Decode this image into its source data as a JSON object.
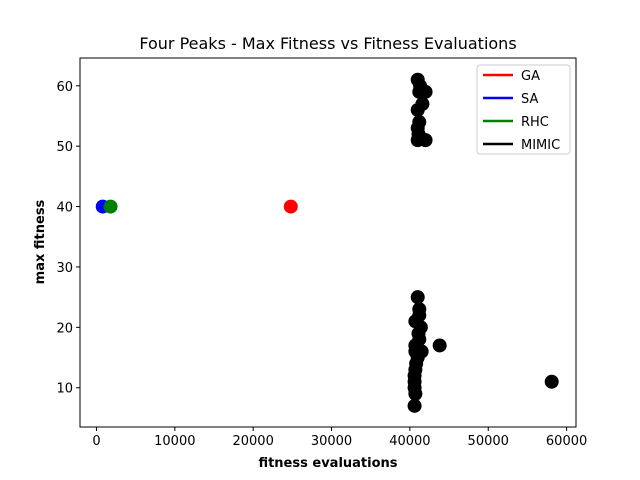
{
  "chart_data": {
    "type": "scatter",
    "title": "Four Peaks - Max Fitness vs Fitness Evaluations",
    "xlabel": "fitness evaluations",
    "ylabel": "max fitness",
    "xlim": [
      -2100,
      61200
    ],
    "ylim": [
      3.5,
      64.6
    ],
    "xticks": [
      0,
      10000,
      20000,
      30000,
      40000,
      50000,
      60000
    ],
    "yticks": [
      10,
      20,
      30,
      40,
      50,
      60
    ],
    "grid": false,
    "legend_position": "top-right",
    "series": [
      {
        "name": "GA",
        "color": "#ff0000",
        "points": [
          [
            24800,
            40
          ]
        ]
      },
      {
        "name": "SA",
        "color": "#0000ff",
        "points": [
          [
            800,
            40
          ]
        ]
      },
      {
        "name": "RHC",
        "color": "#008000",
        "points": [
          [
            1800,
            40
          ]
        ]
      },
      {
        "name": "MIMIC",
        "color": "#000000",
        "points": [
          [
            41000,
            61
          ],
          [
            41300,
            60
          ],
          [
            41600,
            59
          ],
          [
            41200,
            59
          ],
          [
            42000,
            59
          ],
          [
            41600,
            57
          ],
          [
            41000,
            56
          ],
          [
            41200,
            54
          ],
          [
            41000,
            53
          ],
          [
            41100,
            52
          ],
          [
            41000,
            51
          ],
          [
            42000,
            51
          ],
          [
            41000,
            25
          ],
          [
            41200,
            23
          ],
          [
            40700,
            21
          ],
          [
            41400,
            20
          ],
          [
            41200,
            22
          ],
          [
            40700,
            17
          ],
          [
            41200,
            18
          ],
          [
            41500,
            16
          ],
          [
            41000,
            15
          ],
          [
            40800,
            14
          ],
          [
            40700,
            13
          ],
          [
            40600,
            12
          ],
          [
            40600,
            11
          ],
          [
            40600,
            10
          ],
          [
            40700,
            9
          ],
          [
            40600,
            7
          ],
          [
            40700,
            16
          ],
          [
            41100,
            19
          ],
          [
            43800,
            17
          ],
          [
            58100,
            11
          ]
        ]
      }
    ]
  }
}
